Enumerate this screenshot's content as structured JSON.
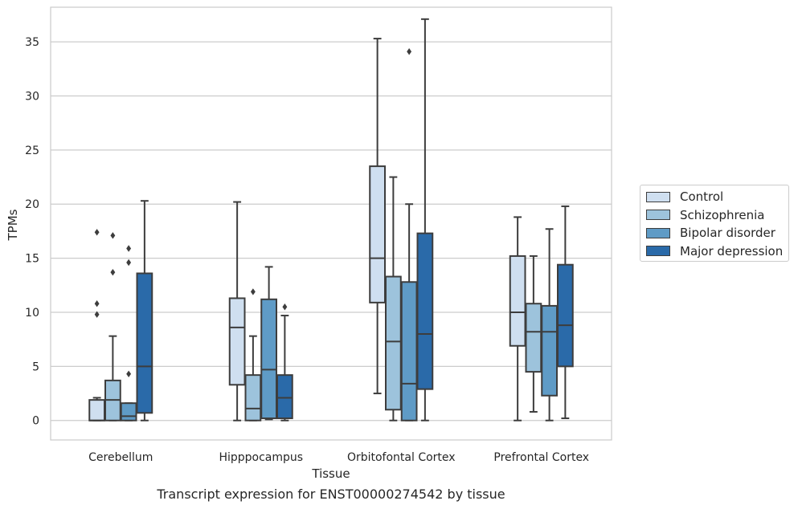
{
  "chart_data": {
    "type": "box",
    "title": "Transcript expression for ENST00000274542 by tissue",
    "xlabel": "Tissue",
    "ylabel": "TPMs",
    "ylim": [
      -1.8,
      38.2
    ],
    "yticks": [
      0,
      5,
      10,
      15,
      20,
      25,
      30,
      35
    ],
    "grid": true,
    "legend_position": "right",
    "categories": [
      "Cerebellum",
      "Hipppocampus",
      "Orbitofontal Cortex",
      "Prefrontal Cortex"
    ],
    "series": [
      {
        "name": "Control",
        "color": "#cfdff0",
        "boxes": [
          {
            "min": 0,
            "q1": 0,
            "median": 0,
            "q3": 1.9,
            "max": 2.1,
            "outliers": [
              9.8,
              10.8,
              17.4
            ]
          },
          {
            "min": 0,
            "q1": 3.3,
            "median": 8.6,
            "q3": 11.3,
            "max": 20.2,
            "outliers": []
          },
          {
            "min": 2.5,
            "q1": 10.9,
            "median": 15.0,
            "q3": 23.5,
            "max": 35.3,
            "outliers": []
          },
          {
            "min": 0,
            "q1": 6.9,
            "median": 10.0,
            "q3": 15.2,
            "max": 18.8,
            "outliers": []
          }
        ]
      },
      {
        "name": "Schizophrenia",
        "color": "#9dc3dc",
        "boxes": [
          {
            "min": 0,
            "q1": 0,
            "median": 1.9,
            "q3": 3.7,
            "max": 7.8,
            "outliers": [
              13.7,
              17.1
            ]
          },
          {
            "min": 0,
            "q1": 0,
            "median": 1.1,
            "q3": 4.2,
            "max": 7.8,
            "outliers": [
              11.9
            ]
          },
          {
            "min": 0,
            "q1": 1.0,
            "median": 7.3,
            "q3": 13.3,
            "max": 22.5,
            "outliers": []
          },
          {
            "min": 0.8,
            "q1": 4.5,
            "median": 8.2,
            "q3": 10.8,
            "max": 15.2,
            "outliers": []
          }
        ]
      },
      {
        "name": "Bipolar disorder",
        "color": "#5f9bc6",
        "boxes": [
          {
            "min": 0,
            "q1": 0,
            "median": 0.4,
            "q3": 1.6,
            "max": 1.6,
            "outliers": [
              4.3,
              14.6,
              15.9
            ]
          },
          {
            "min": 0.1,
            "q1": 0.2,
            "median": 4.7,
            "q3": 11.2,
            "max": 14.2,
            "outliers": []
          },
          {
            "min": 0,
            "q1": 0,
            "median": 3.4,
            "q3": 12.8,
            "max": 20.0,
            "outliers": [
              34.1
            ]
          },
          {
            "min": 0,
            "q1": 2.3,
            "median": 8.2,
            "q3": 10.6,
            "max": 17.7,
            "outliers": []
          }
        ]
      },
      {
        "name": "Major depression",
        "color": "#2a6aa9",
        "boxes": [
          {
            "min": 0,
            "q1": 0.7,
            "median": 5.0,
            "q3": 13.6,
            "max": 20.3,
            "outliers": []
          },
          {
            "min": 0,
            "q1": 0.2,
            "median": 2.1,
            "q3": 4.2,
            "max": 9.7,
            "outliers": [
              10.5
            ]
          },
          {
            "min": 0,
            "q1": 2.9,
            "median": 8.0,
            "q3": 17.3,
            "max": 37.1,
            "outliers": []
          },
          {
            "min": 0.2,
            "q1": 5.0,
            "median": 8.8,
            "q3": 14.4,
            "max": 19.8,
            "outliers": []
          }
        ]
      }
    ]
  }
}
